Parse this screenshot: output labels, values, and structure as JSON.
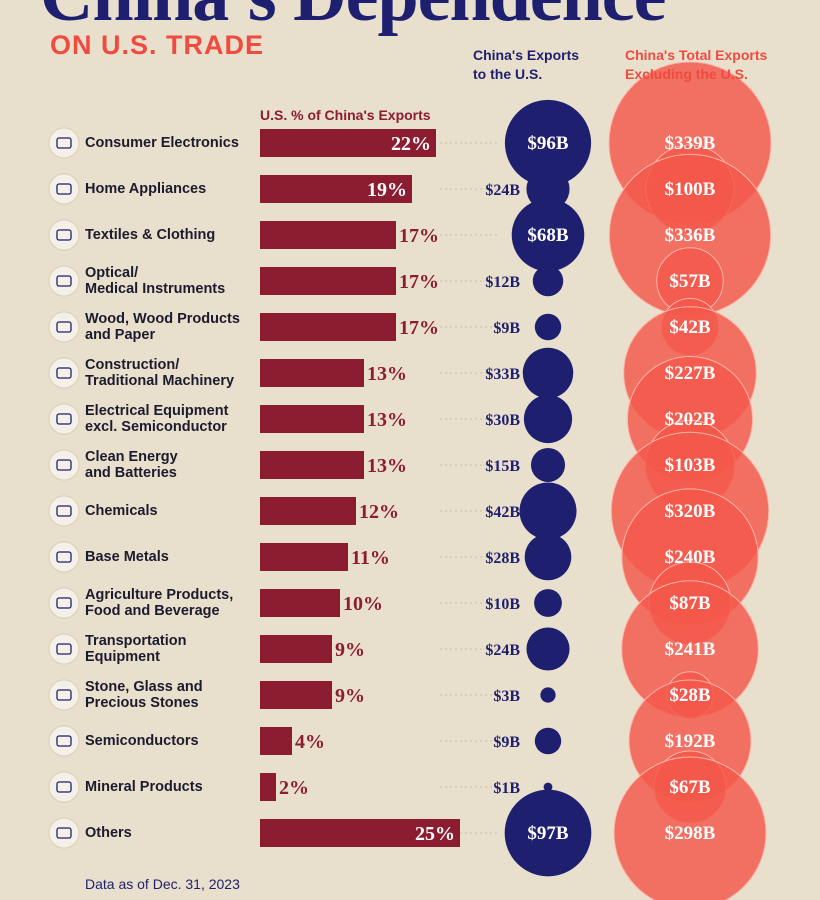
{
  "chart_data": {
    "type": "bar",
    "title": "China's Dependence",
    "subtitle": "ON U.S. TRADE",
    "footnote": "Data as of Dec. 31, 2023",
    "categories": [
      "Consumer Electronics",
      "Home Appliances",
      "Textiles & Clothing",
      "Optical/\nMedical Instruments",
      "Wood, Wood Products\nand Paper",
      "Construction/\nTraditional Machinery",
      "Electrical Equipment\nexcl. Semiconductor",
      "Clean Energy\nand Batteries",
      "Chemicals",
      "Base Metals",
      "Agriculture Products,\nFood and Beverage",
      "Transportation\nEquipment",
      "Stone, Glass and\nPrecious Stones",
      "Semiconductors",
      "Mineral Products",
      "Others"
    ],
    "series": [
      {
        "name": "U.S. % of China's Exports",
        "type": "bar",
        "color": "#8c1c30",
        "values": [
          22,
          19,
          17,
          17,
          17,
          13,
          13,
          13,
          12,
          11,
          10,
          9,
          9,
          4,
          2,
          25
        ],
        "value_labels": [
          "22%",
          "19%",
          "17%",
          "17%",
          "17%",
          "13%",
          "13%",
          "13%",
          "12%",
          "11%",
          "10%",
          "9%",
          "9%",
          "4%",
          "2%",
          "25%"
        ]
      },
      {
        "name": "China's Exports\nto the U.S.",
        "type": "bubble",
        "color": "#1e1f6e",
        "values": [
          96,
          24,
          68,
          12,
          9,
          33,
          30,
          15,
          42,
          28,
          10,
          24,
          3,
          9,
          1,
          97
        ],
        "value_labels": [
          "$96B",
          "$24B",
          "$68B",
          "$12B",
          "$9B",
          "$33B",
          "$30B",
          "$15B",
          "$42B",
          "$28B",
          "$10B",
          "$24B",
          "$3B",
          "$9B",
          "$1B",
          "$97B"
        ]
      },
      {
        "name": "China's Total Exports\nExcluding the U.S.",
        "type": "bubble",
        "color": "#f3584a",
        "values": [
          339,
          100,
          336,
          57,
          42,
          227,
          202,
          103,
          320,
          240,
          87,
          241,
          28,
          192,
          67,
          298
        ],
        "value_labels": [
          "$339B",
          "$100B",
          "$336B",
          "$57B",
          "$42B",
          "$227B",
          "$202B",
          "$103B",
          "$320B",
          "$240B",
          "$87B",
          "$241B",
          "$28B",
          "$192B",
          "$67B",
          "$298B"
        ]
      }
    ]
  }
}
